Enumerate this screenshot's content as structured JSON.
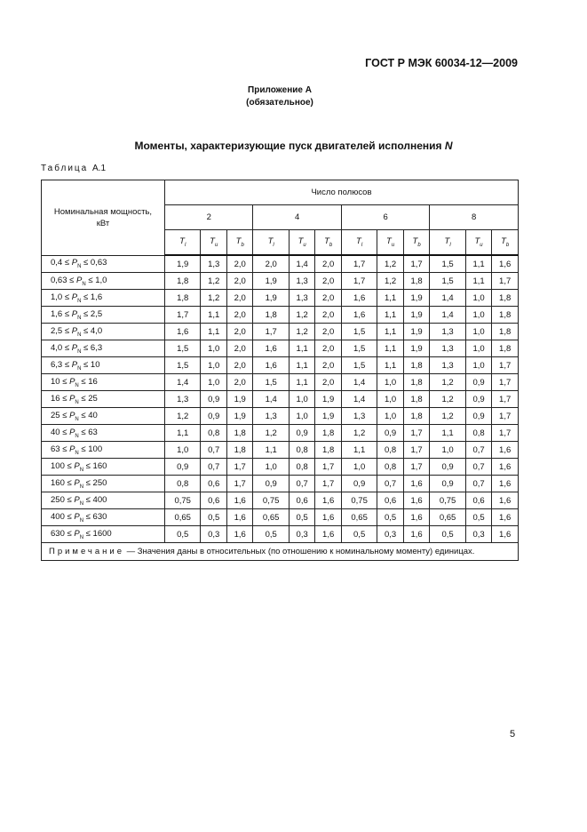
{
  "header": {
    "doc_code": "ГОСТ Р МЭК 60034-12—2009"
  },
  "annex": {
    "title": "Приложение А",
    "status": "(обязательное)"
  },
  "heading": {
    "text": "Моменты, характеризующие пуск двигателей исполнения ",
    "italic_suffix": "N"
  },
  "table": {
    "label_spaced": "Таблица",
    "label_number": "А.1",
    "power_header": "Номинальная мощность, кВт",
    "poles_header": "Число полюсов",
    "poles": [
      "2",
      "4",
      "6",
      "8"
    ],
    "subcols": [
      "l",
      "u",
      "b"
    ],
    "subcol_symbol": "T",
    "rows": [
      {
        "range": [
          "0,4",
          "0,63"
        ],
        "values": [
          "1,9",
          "1,3",
          "2,0",
          "2,0",
          "1,4",
          "2,0",
          "1,7",
          "1,2",
          "1,7",
          "1,5",
          "1,1",
          "1,6"
        ]
      },
      {
        "range": [
          "0,63",
          "1,0"
        ],
        "values": [
          "1,8",
          "1,2",
          "2,0",
          "1,9",
          "1,3",
          "2,0",
          "1,7",
          "1,2",
          "1,8",
          "1,5",
          "1,1",
          "1,7"
        ]
      },
      {
        "range": [
          "1,0",
          "1,6"
        ],
        "values": [
          "1,8",
          "1,2",
          "2,0",
          "1,9",
          "1,3",
          "2,0",
          "1,6",
          "1,1",
          "1,9",
          "1,4",
          "1,0",
          "1,8"
        ]
      },
      {
        "range": [
          "1,6",
          "2,5"
        ],
        "values": [
          "1,7",
          "1,1",
          "2,0",
          "1,8",
          "1,2",
          "2,0",
          "1,6",
          "1,1",
          "1,9",
          "1,4",
          "1,0",
          "1,8"
        ]
      },
      {
        "range": [
          "2,5",
          "4,0"
        ],
        "values": [
          "1,6",
          "1,1",
          "2,0",
          "1,7",
          "1,2",
          "2,0",
          "1,5",
          "1,1",
          "1,9",
          "1,3",
          "1,0",
          "1,8"
        ]
      },
      {
        "range": [
          "4,0",
          "6,3"
        ],
        "values": [
          "1,5",
          "1,0",
          "2,0",
          "1,6",
          "1,1",
          "2,0",
          "1,5",
          "1,1",
          "1,9",
          "1,3",
          "1,0",
          "1,8"
        ]
      },
      {
        "range": [
          "6,3",
          "10"
        ],
        "values": [
          "1,5",
          "1,0",
          "2,0",
          "1,6",
          "1,1",
          "2,0",
          "1,5",
          "1,1",
          "1,8",
          "1,3",
          "1,0",
          "1,7"
        ]
      },
      {
        "range": [
          "10",
          "16"
        ],
        "values": [
          "1,4",
          "1,0",
          "2,0",
          "1,5",
          "1,1",
          "2,0",
          "1,4",
          "1,0",
          "1,8",
          "1,2",
          "0,9",
          "1,7"
        ]
      },
      {
        "range": [
          "16",
          "25"
        ],
        "values": [
          "1,3",
          "0,9",
          "1,9",
          "1,4",
          "1,0",
          "1,9",
          "1,4",
          "1,0",
          "1,8",
          "1,2",
          "0,9",
          "1,7"
        ]
      },
      {
        "range": [
          "25",
          "40"
        ],
        "values": [
          "1,2",
          "0,9",
          "1,9",
          "1,3",
          "1,0",
          "1,9",
          "1,3",
          "1,0",
          "1,8",
          "1,2",
          "0,9",
          "1,7"
        ]
      },
      {
        "range": [
          "40",
          "63"
        ],
        "values": [
          "1,1",
          "0,8",
          "1,8",
          "1,2",
          "0,9",
          "1,8",
          "1,2",
          "0,9",
          "1,7",
          "1,1",
          "0,8",
          "1,7"
        ]
      },
      {
        "range": [
          "63",
          "100"
        ],
        "values": [
          "1,0",
          "0,7",
          "1,8",
          "1,1",
          "0,8",
          "1,8",
          "1,1",
          "0,8",
          "1,7",
          "1,0",
          "0,7",
          "1,6"
        ]
      },
      {
        "range": [
          "100",
          "160"
        ],
        "values": [
          "0,9",
          "0,7",
          "1,7",
          "1,0",
          "0,8",
          "1,7",
          "1,0",
          "0,8",
          "1,7",
          "0,9",
          "0,7",
          "1,6"
        ]
      },
      {
        "range": [
          "160",
          "250"
        ],
        "values": [
          "0,8",
          "0,6",
          "1,7",
          "0,9",
          "0,7",
          "1,7",
          "0,9",
          "0,7",
          "1,6",
          "0,9",
          "0,7",
          "1,6"
        ]
      },
      {
        "range": [
          "250",
          "400"
        ],
        "values": [
          "0,75",
          "0,6",
          "1,6",
          "0,75",
          "0,6",
          "1,6",
          "0,75",
          "0,6",
          "1,6",
          "0,75",
          "0,6",
          "1,6"
        ]
      },
      {
        "range": [
          "400",
          "630"
        ],
        "values": [
          "0,65",
          "0,5",
          "1,6",
          "0,65",
          "0,5",
          "1,6",
          "0,65",
          "0,5",
          "1,6",
          "0,65",
          "0,5",
          "1,6"
        ]
      },
      {
        "range": [
          "630",
          "1600"
        ],
        "values": [
          "0,5",
          "0,3",
          "1,6",
          "0,5",
          "0,3",
          "1,6",
          "0,5",
          "0,3",
          "1,6",
          "0,5",
          "0,3",
          "1,6"
        ]
      }
    ],
    "range_symbol": "P",
    "range_subscript": "N",
    "note_label": "Примечание",
    "note_text": " — Значения даны в относительных (по отношению к номинальному моменту) единицах."
  },
  "footer": {
    "page_number": "5"
  }
}
